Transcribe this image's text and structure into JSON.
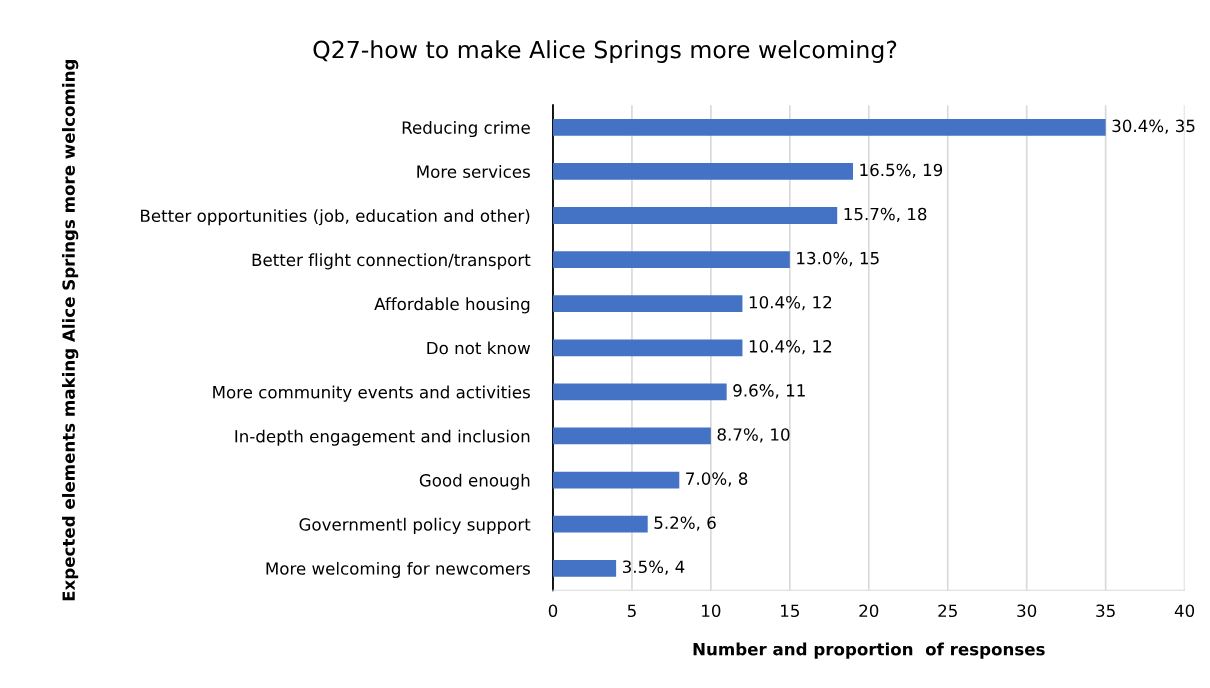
{
  "chart_data": {
    "type": "bar",
    "orientation": "horizontal",
    "title": "Q27-how to make Alice Springs more welcoming?",
    "xlabel": "Number and proportion  of responses",
    "ylabel": "Expected elements making Alice Springs more welcoming",
    "categories": [
      "Reducing crime",
      "More services",
      "Better opportunities (job, education and other)",
      "Better flight connection/transport",
      "Affordable housing",
      "Do not know",
      "More community events and activities",
      "In-depth engagement and inclusion",
      "Good enough",
      "Governmentl policy support",
      "More welcoming for newcomers"
    ],
    "values": [
      35,
      19,
      18,
      15,
      12,
      12,
      11,
      10,
      8,
      6,
      4
    ],
    "value_labels": [
      "30.4%, 35",
      "16.5%, 19",
      "15.7%, 18",
      "13.0%, 15",
      "10.4%, 12",
      "10.4%, 12",
      "9.6%, 11",
      "8.7%, 10",
      "7.0%, 8",
      "5.2%, 6",
      "3.5%, 4"
    ],
    "color": "#4472c4",
    "xlim": [
      0,
      40
    ],
    "xticks": [
      0,
      5,
      10,
      15,
      20,
      25,
      30,
      35,
      40
    ],
    "grid": "x",
    "legend": false
  }
}
